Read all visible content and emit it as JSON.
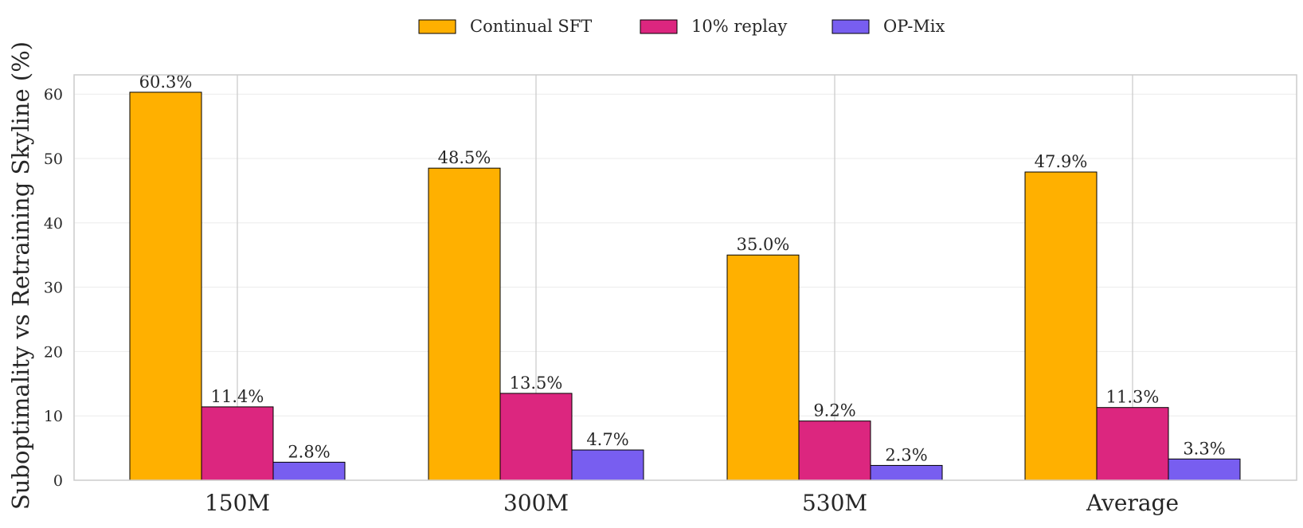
{
  "chart_data": {
    "type": "bar",
    "categories": [
      "150M",
      "300M",
      "530M",
      "Average"
    ],
    "series": [
      {
        "name": "Continual SFT",
        "values": [
          60.3,
          48.5,
          35.0,
          47.9
        ],
        "labels": [
          "60.3%",
          "48.5%",
          "35.0%",
          "47.9%"
        ],
        "color": "#FFB000"
      },
      {
        "name": "10% replay",
        "values": [
          11.4,
          13.5,
          9.2,
          11.3
        ],
        "labels": [
          "11.4%",
          "13.5%",
          "9.2%",
          "11.3%"
        ],
        "color": "#DC267F"
      },
      {
        "name": "OP-Mix",
        "values": [
          2.8,
          4.7,
          2.3,
          3.3
        ],
        "labels": [
          "2.8%",
          "4.7%",
          "2.3%",
          "3.3%"
        ],
        "color": "#785EF0"
      }
    ],
    "ylabel": "Suboptimality vs Retraining Skyline (%)",
    "xlabel": "",
    "ylim": [
      0,
      63
    ],
    "yticks": [
      "0",
      "10",
      "20",
      "30",
      "40",
      "50",
      "60"
    ],
    "legend_position": "top-center",
    "grid": true
  }
}
